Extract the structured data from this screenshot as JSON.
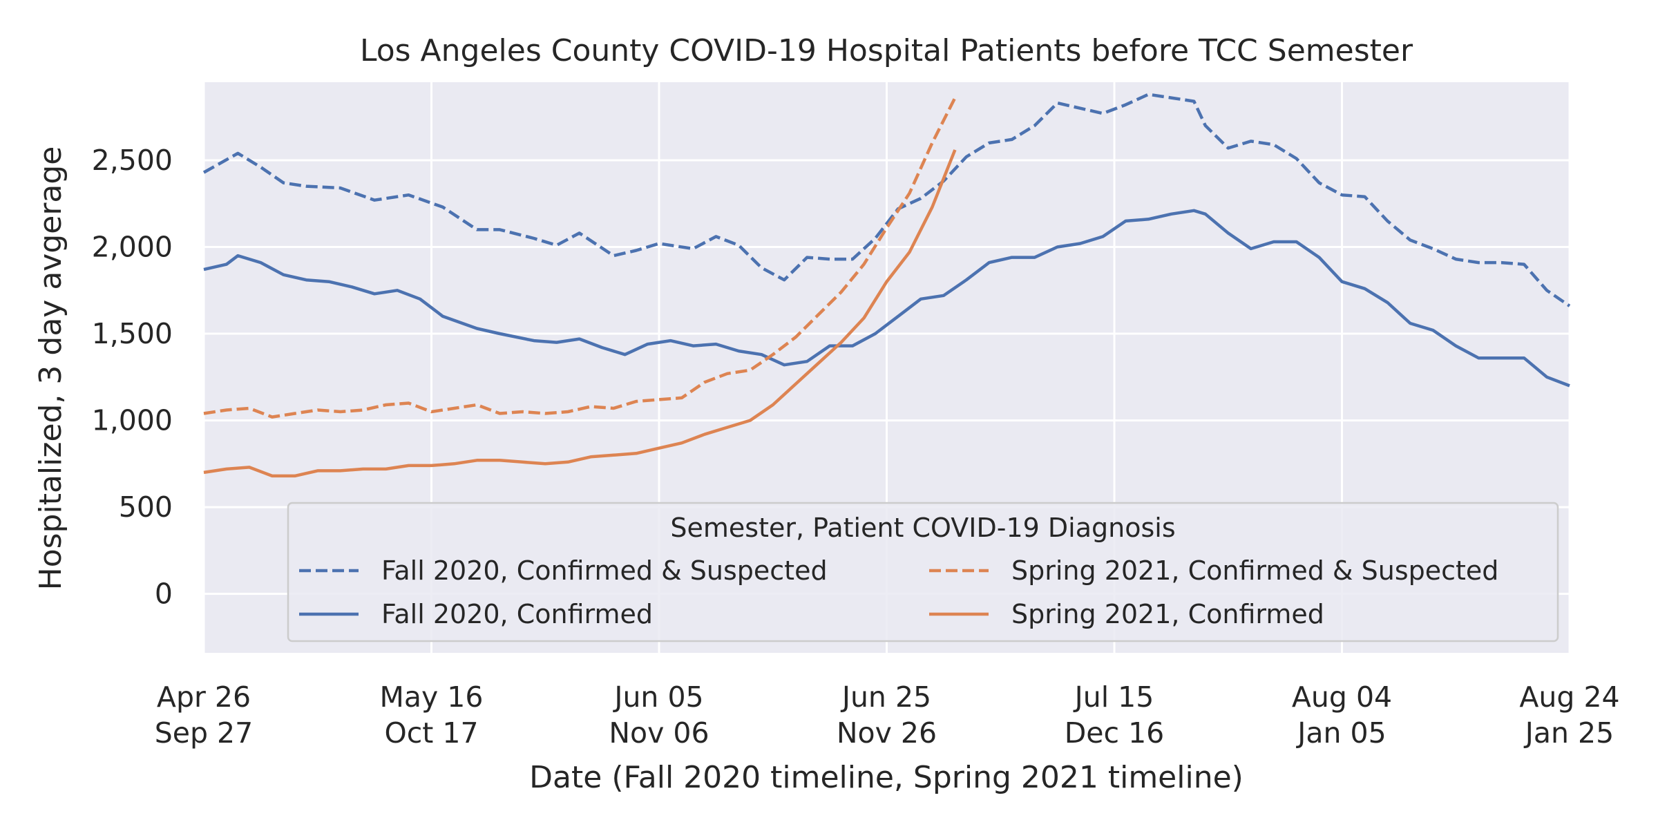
{
  "chart_data": {
    "type": "line",
    "title": "Los Angeles County COVID-19 Hospital Patients before TCC Semester",
    "xlabel": "Date (Fall 2020 timeline, Spring 2021 timeline)",
    "ylabel": "Hospitalized, 3 day avgerage",
    "x_unit": "day",
    "xlim": [
      0,
      120
    ],
    "ylim": [
      -340,
      2950
    ],
    "y_ticks": [
      0,
      500,
      1000,
      1500,
      2000,
      2500
    ],
    "y_tick_labels": [
      "0",
      "500",
      "1,000",
      "1,500",
      "2,000",
      "2,500"
    ],
    "x_ticks": [
      {
        "x": 0,
        "labels": [
          "Apr 26",
          "Sep 27"
        ]
      },
      {
        "x": 20,
        "labels": [
          "May 16",
          "Oct 17"
        ]
      },
      {
        "x": 40,
        "labels": [
          "Jun 05",
          "Nov 06"
        ]
      },
      {
        "x": 60,
        "labels": [
          "Jun 25",
          "Nov 26"
        ]
      },
      {
        "x": 80,
        "labels": [
          "Jul 15",
          "Dec 16"
        ]
      },
      {
        "x": 100,
        "labels": [
          "Aug 04",
          "Jan 05"
        ]
      },
      {
        "x": 120,
        "labels": [
          "Aug 24",
          "Jan 25"
        ]
      }
    ],
    "grid": true,
    "background": "#eaeaf2",
    "legend": {
      "title": "Semester, Patient COVID-19 Diagnosis",
      "placement": "lower-right",
      "columns": 2
    },
    "series": [
      {
        "name": "Fall 2020, Confirmed & Suspected",
        "color": "#4c72b0",
        "dash": "dashed",
        "x": [
          0,
          3,
          5,
          7,
          9,
          12,
          15,
          18,
          21,
          24,
          26,
          29,
          31,
          33,
          36,
          38,
          40,
          43,
          45,
          47,
          49,
          51,
          53,
          55,
          57,
          59,
          61,
          63,
          65,
          67,
          69,
          71,
          73,
          75,
          77,
          79,
          81,
          83,
          85,
          87,
          88,
          90,
          92,
          94,
          96,
          98,
          100,
          102,
          104,
          106,
          108,
          110,
          112,
          114,
          116,
          118,
          120
        ],
        "y": [
          2430,
          2540,
          2460,
          2370,
          2350,
          2340,
          2270,
          2300,
          2230,
          2100,
          2100,
          2050,
          2010,
          2080,
          1950,
          1980,
          2020,
          1990,
          2060,
          2010,
          1880,
          1810,
          1940,
          1930,
          1930,
          2050,
          2220,
          2280,
          2380,
          2520,
          2600,
          2620,
          2700,
          2830,
          2800,
          2770,
          2820,
          2880,
          2860,
          2840,
          2700,
          2570,
          2610,
          2590,
          2510,
          2370,
          2300,
          2290,
          2150,
          2040,
          1990,
          1930,
          1910,
          1910,
          1900,
          1750,
          1660
        ]
      },
      {
        "name": "Fall 2020, Confirmed",
        "color": "#4c72b0",
        "dash": "solid",
        "x": [
          0,
          2,
          3,
          5,
          7,
          9,
          11,
          13,
          15,
          17,
          19,
          21,
          24,
          26,
          29,
          31,
          33,
          35,
          37,
          39,
          41,
          43,
          45,
          47,
          49,
          51,
          53,
          55,
          57,
          59,
          61,
          63,
          65,
          67,
          69,
          71,
          73,
          75,
          77,
          79,
          81,
          83,
          85,
          87,
          88,
          90,
          92,
          94,
          96,
          98,
          100,
          102,
          104,
          106,
          108,
          110,
          112,
          114,
          116,
          118,
          120
        ],
        "y": [
          1870,
          1900,
          1950,
          1910,
          1840,
          1810,
          1800,
          1770,
          1730,
          1750,
          1700,
          1600,
          1530,
          1500,
          1460,
          1450,
          1470,
          1420,
          1380,
          1440,
          1460,
          1430,
          1440,
          1400,
          1380,
          1320,
          1340,
          1430,
          1430,
          1500,
          1600,
          1700,
          1720,
          1810,
          1910,
          1940,
          1940,
          2000,
          2020,
          2060,
          2150,
          2160,
          2190,
          2210,
          2190,
          2080,
          1990,
          2030,
          2030,
          1940,
          1800,
          1760,
          1680,
          1560,
          1520,
          1430,
          1360,
          1360,
          1360,
          1250,
          1200
        ]
      },
      {
        "name": "Spring 2021, Confirmed & Suspected",
        "color": "#dd8452",
        "dash": "dashed",
        "x": [
          0,
          2,
          4,
          6,
          8,
          10,
          12,
          14,
          16,
          18,
          20,
          22,
          24,
          26,
          28,
          30,
          32,
          34,
          36,
          38,
          40,
          42,
          44,
          46,
          48,
          50,
          52,
          54,
          56,
          58,
          60,
          62,
          64,
          66
        ],
        "y": [
          1040,
          1060,
          1070,
          1020,
          1040,
          1060,
          1050,
          1060,
          1090,
          1100,
          1050,
          1070,
          1090,
          1040,
          1050,
          1040,
          1050,
          1080,
          1070,
          1110,
          1120,
          1130,
          1220,
          1270,
          1290,
          1380,
          1480,
          1610,
          1740,
          1900,
          2110,
          2310,
          2600,
          2860
        ]
      },
      {
        "name": "Spring 2021, Confirmed",
        "color": "#dd8452",
        "dash": "solid",
        "x": [
          0,
          2,
          4,
          6,
          8,
          10,
          12,
          14,
          16,
          18,
          20,
          22,
          24,
          26,
          28,
          30,
          32,
          34,
          36,
          38,
          40,
          42,
          44,
          46,
          48,
          50,
          52,
          54,
          56,
          58,
          60,
          62,
          64,
          66
        ],
        "y": [
          700,
          720,
          730,
          680,
          680,
          710,
          710,
          720,
          720,
          740,
          740,
          750,
          770,
          770,
          760,
          750,
          760,
          790,
          800,
          810,
          840,
          870,
          920,
          960,
          1000,
          1090,
          1210,
          1330,
          1450,
          1590,
          1800,
          1970,
          2230,
          2560
        ]
      }
    ]
  }
}
